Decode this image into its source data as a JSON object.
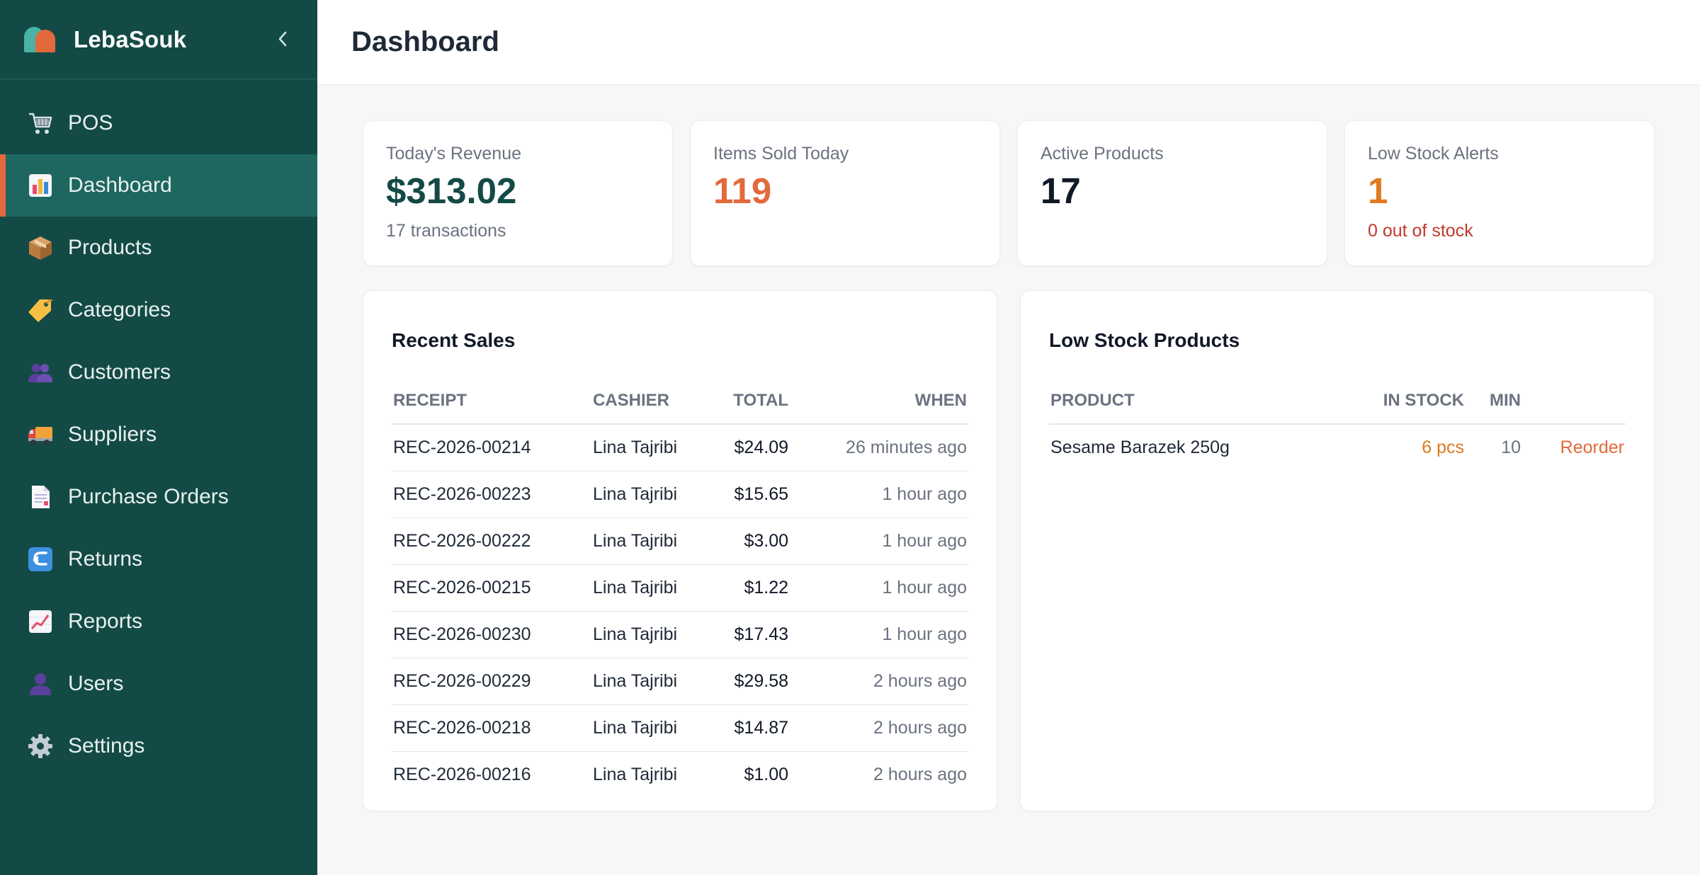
{
  "brand": {
    "name": "LebaSouk"
  },
  "header": {
    "title": "Dashboard"
  },
  "nav": [
    {
      "label": "POS",
      "icon": "cart-icon"
    },
    {
      "label": "Dashboard",
      "icon": "bar-chart-icon",
      "active": true
    },
    {
      "label": "Products",
      "icon": "package-icon"
    },
    {
      "label": "Categories",
      "icon": "tag-icon"
    },
    {
      "label": "Customers",
      "icon": "users-icon"
    },
    {
      "label": "Suppliers",
      "icon": "truck-icon"
    },
    {
      "label": "Purchase Orders",
      "icon": "document-icon"
    },
    {
      "label": "Returns",
      "icon": "return-arrow-icon"
    },
    {
      "label": "Reports",
      "icon": "line-chart-icon"
    },
    {
      "label": "Users",
      "icon": "user-icon"
    },
    {
      "label": "Settings",
      "icon": "gear-icon"
    }
  ],
  "stats": {
    "revenue": {
      "label": "Today's Revenue",
      "value": "$313.02",
      "sub": "17 transactions"
    },
    "items_sold": {
      "label": "Items Sold Today",
      "value": "119"
    },
    "active_products": {
      "label": "Active Products",
      "value": "17"
    },
    "low_stock": {
      "label": "Low Stock Alerts",
      "value": "1",
      "sub": "0 out of stock"
    }
  },
  "recent_sales": {
    "title": "Recent Sales",
    "columns": {
      "receipt": "RECEIPT",
      "cashier": "CASHIER",
      "total": "TOTAL",
      "when": "WHEN"
    },
    "rows": [
      {
        "receipt": "REC-2026-00214",
        "cashier": "Lina Tajribi",
        "total": "$24.09",
        "when": "26 minutes ago"
      },
      {
        "receipt": "REC-2026-00223",
        "cashier": "Lina Tajribi",
        "total": "$15.65",
        "when": "1 hour ago"
      },
      {
        "receipt": "REC-2026-00222",
        "cashier": "Lina Tajribi",
        "total": "$3.00",
        "when": "1 hour ago"
      },
      {
        "receipt": "REC-2026-00215",
        "cashier": "Lina Tajribi",
        "total": "$1.22",
        "when": "1 hour ago"
      },
      {
        "receipt": "REC-2026-00230",
        "cashier": "Lina Tajribi",
        "total": "$17.43",
        "when": "1 hour ago"
      },
      {
        "receipt": "REC-2026-00229",
        "cashier": "Lina Tajribi",
        "total": "$29.58",
        "when": "2 hours ago"
      },
      {
        "receipt": "REC-2026-00218",
        "cashier": "Lina Tajribi",
        "total": "$14.87",
        "when": "2 hours ago"
      },
      {
        "receipt": "REC-2026-00216",
        "cashier": "Lina Tajribi",
        "total": "$1.00",
        "when": "2 hours ago"
      }
    ]
  },
  "low_stock_products": {
    "title": "Low Stock Products",
    "columns": {
      "product": "PRODUCT",
      "in_stock": "IN STOCK",
      "min": "MIN"
    },
    "rows": [
      {
        "product": "Sesame Barazek 250g",
        "in_stock": "6 pcs",
        "min": "10",
        "action": "Reorder"
      }
    ]
  },
  "colors": {
    "sidebar": "#134a46",
    "sidebar_active": "#1e6660",
    "accent": "#e2693c",
    "revenue": "#134a46",
    "warning": "#e07a1f",
    "danger": "#c0392b"
  }
}
